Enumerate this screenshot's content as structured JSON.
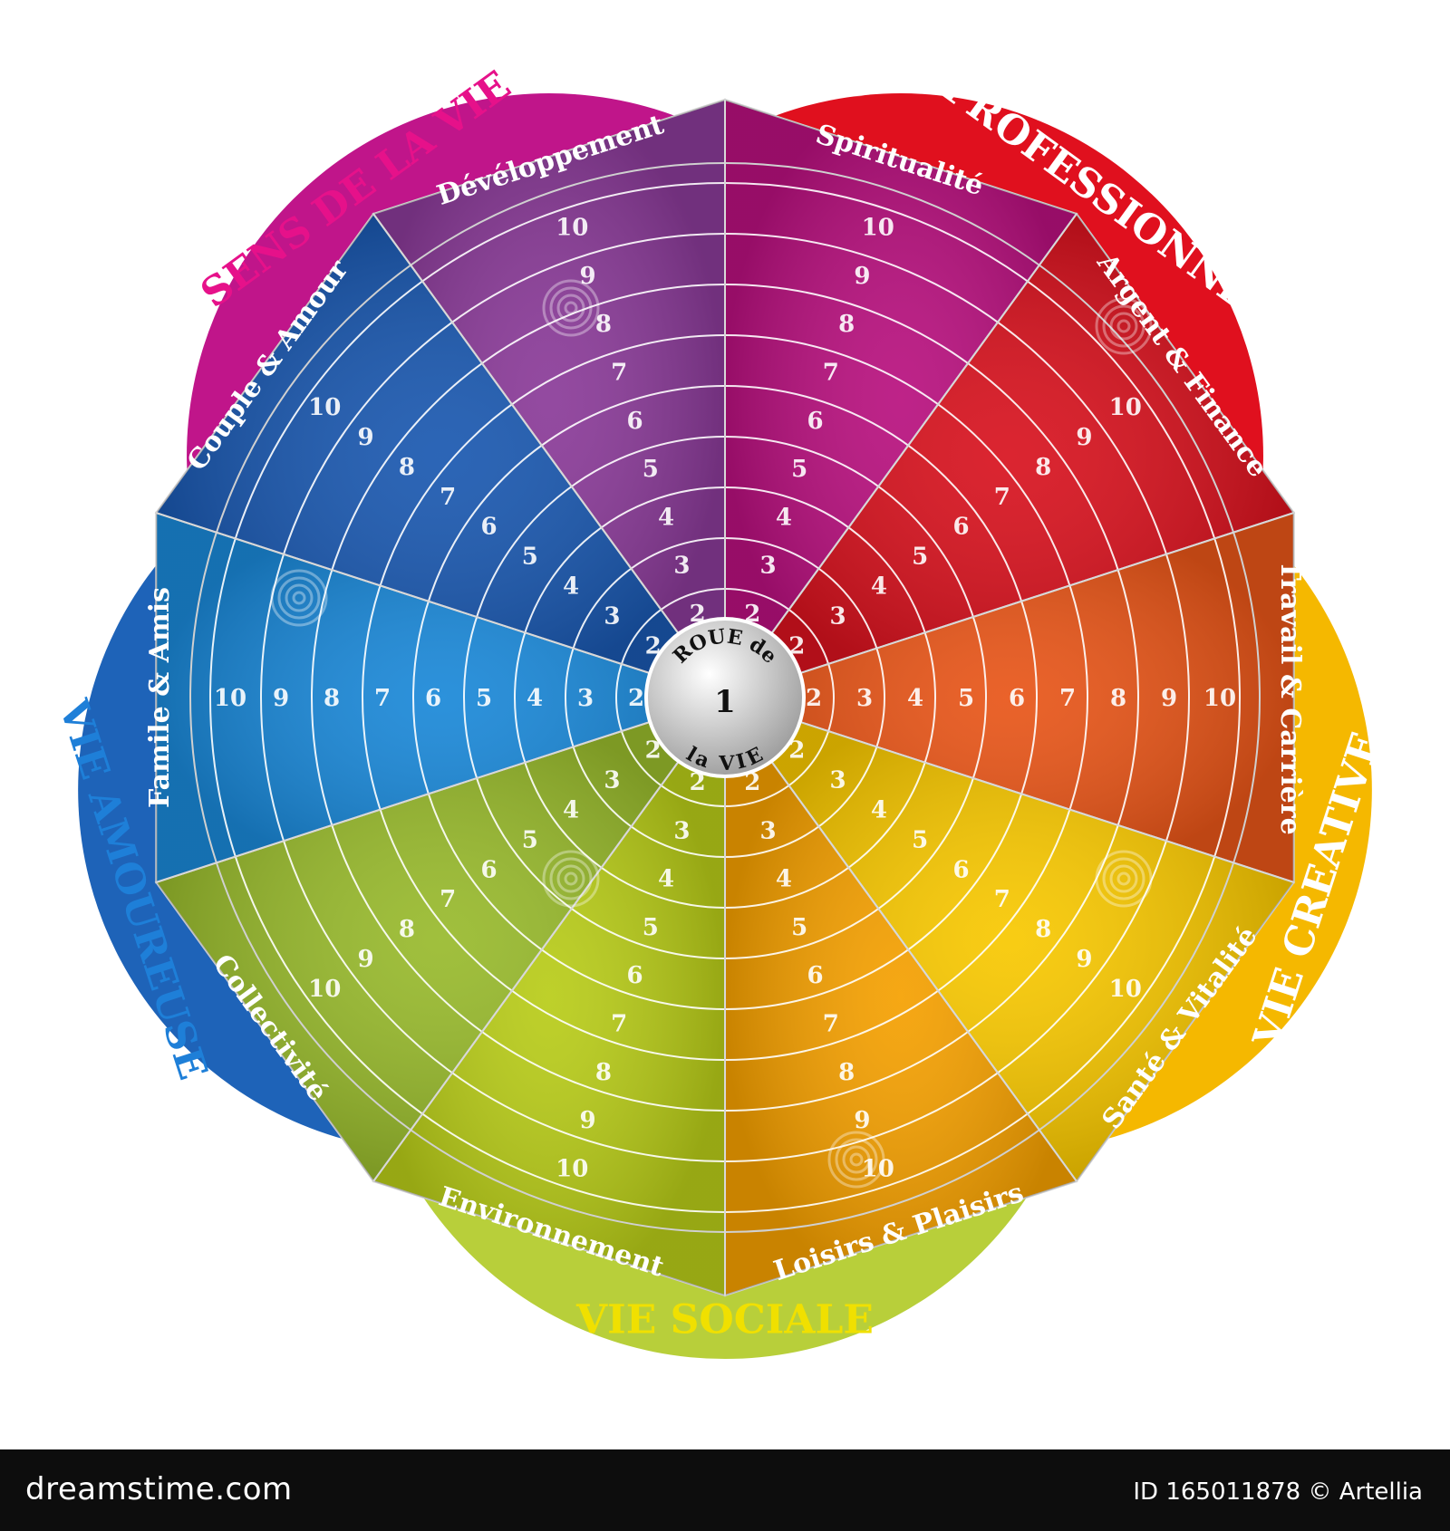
{
  "center": {
    "line1": "ROUE de",
    "number": "1",
    "line2": "la VIE"
  },
  "areas": [
    {
      "label": "SENS DE LA VIE",
      "color": "#c0158a"
    },
    {
      "label": "VIE PROFESSIONNELLE",
      "color": "#e0101e"
    },
    {
      "label": "VIE CREATIVE",
      "color": "#f5b800"
    },
    {
      "label": "VIE SOCIALE",
      "color": "#b8cf3a"
    },
    {
      "label": "VIE AMOUREUSE",
      "color": "#1e63b8"
    }
  ],
  "sectors": [
    {
      "label": "Spiritualité",
      "color": "#b8107e"
    },
    {
      "label": "Argent & Finance",
      "color": "#d8121e"
    },
    {
      "label": "Travail & Carrière",
      "color": "#e85518"
    },
    {
      "label": "Santé & Vitalité",
      "color": "#f8c800"
    },
    {
      "label": "Loisirs & Plaisirs",
      "color": "#f5a000"
    },
    {
      "label": "Environnement",
      "color": "#b8cc18"
    },
    {
      "label": "Collectivité",
      "color": "#98ba2c"
    },
    {
      "label": "Famile & Amis",
      "color": "#1a88d8"
    },
    {
      "label": "Couple & Amour",
      "color": "#1a58b0"
    },
    {
      "label": "Dévéloppement",
      "color": "#8a3a98"
    }
  ],
  "scale": [
    "2",
    "3",
    "4",
    "5",
    "6",
    "7",
    "8",
    "9",
    "10"
  ],
  "footer": {
    "logo": "dreamstime.com",
    "id": "ID 165011878 © Artellia"
  }
}
